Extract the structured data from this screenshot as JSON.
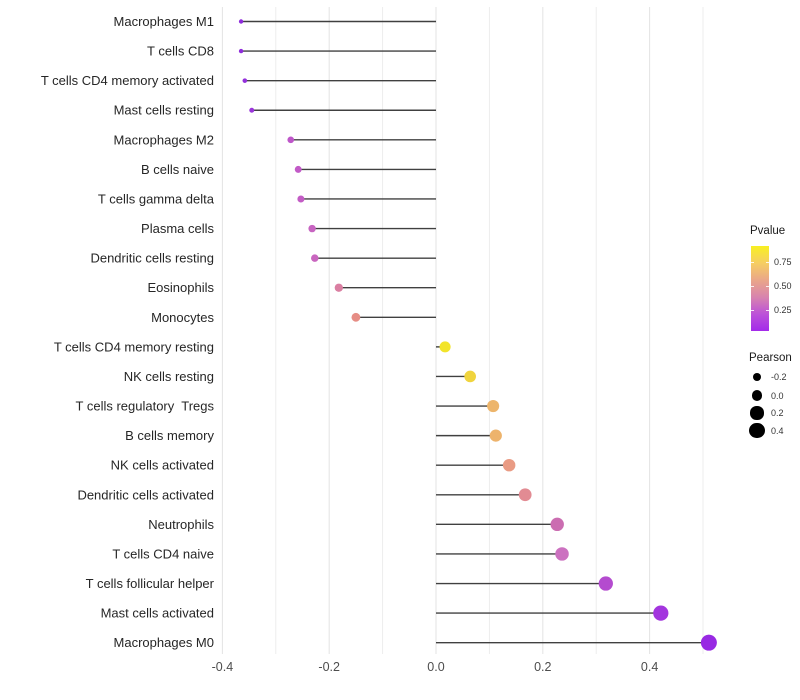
{
  "chart_data": {
    "type": "lollipop",
    "title": "",
    "xlabel": "",
    "ylabel": "",
    "grid": true,
    "x_axis": {
      "tick_labels": [
        "-0.4",
        "-0.2",
        "0.0",
        "0.2",
        "0.4"
      ],
      "tick_values": [
        -0.4,
        -0.2,
        0.0,
        0.2,
        0.4
      ],
      "grid_from": -0.4,
      "grid_to": 0.5,
      "grid_step": 0.1,
      "range": [
        -0.41,
        0.56
      ]
    },
    "rows": [
      {
        "label": "Macrophages M1",
        "pearson": -0.365,
        "color": "#8E2BDB"
      },
      {
        "label": "T cells CD8",
        "pearson": -0.365,
        "color": "#8F2CDB"
      },
      {
        "label": "T cells CD4 memory activated",
        "pearson": -0.358,
        "color": "#9330DB"
      },
      {
        "label": "Mast cells resting",
        "pearson": -0.345,
        "color": "#9A35DA"
      },
      {
        "label": "Macrophages M2",
        "pearson": -0.272,
        "color": "#BE56C9"
      },
      {
        "label": "B cells naive",
        "pearson": -0.258,
        "color": "#C25AC7"
      },
      {
        "label": "T cells gamma delta",
        "pearson": -0.253,
        "color": "#C35CC5"
      },
      {
        "label": "Plasma cells",
        "pearson": -0.232,
        "color": "#C764C1"
      },
      {
        "label": "Dendritic cells resting",
        "pearson": -0.227,
        "color": "#C966BF"
      },
      {
        "label": "Eosinophils",
        "pearson": -0.182,
        "color": "#DA7FA2"
      },
      {
        "label": "Monocytes",
        "pearson": -0.15,
        "color": "#E68D85"
      },
      {
        "label": "T cells CD4 memory resting",
        "pearson": 0.017,
        "color": "#F2E42A"
      },
      {
        "label": "NK cells resting",
        "pearson": 0.064,
        "color": "#F0D43E"
      },
      {
        "label": "T cells regulatory  Tregs",
        "pearson": 0.107,
        "color": "#EDB56B"
      },
      {
        "label": "B cells memory",
        "pearson": 0.112,
        "color": "#EDB36C"
      },
      {
        "label": "NK cells activated",
        "pearson": 0.137,
        "color": "#E99B84"
      },
      {
        "label": "Dendritic cells activated",
        "pearson": 0.167,
        "color": "#E28B93"
      },
      {
        "label": "Neutrophils",
        "pearson": 0.227,
        "color": "#CB6DB1"
      },
      {
        "label": "T cells CD4 naive",
        "pearson": 0.236,
        "color": "#CC71C0"
      },
      {
        "label": "T cells follicular helper",
        "pearson": 0.318,
        "color": "#B44BCF"
      },
      {
        "label": "Mast cells activated",
        "pearson": 0.421,
        "color": "#A335DE"
      },
      {
        "label": "Macrophages M0",
        "pearson": 0.511,
        "color": "#9829E3"
      }
    ],
    "color_legend": {
      "title": "Pvalue",
      "tick_labels": [
        "0.75",
        "0.50",
        "0.25"
      ],
      "gradient_top_to_bottom": [
        "#F8F021",
        "#F6CE62",
        "#EAA689",
        "#D884AE",
        "#BC52D8",
        "#A32BEA"
      ]
    },
    "size_legend": {
      "title": "Pearson",
      "tick_labels": [
        "-0.2",
        "0.0",
        "0.2",
        "0.4"
      ],
      "tick_values": [
        -0.2,
        0.0,
        0.2,
        0.4
      ],
      "dot_color": "#000000"
    },
    "style_colors": {
      "grid_major": "#E3E3E3",
      "grid_minor": "#EDEDED",
      "stem": "#404040",
      "axis_text": "#4D4D4D",
      "category_text": "#262626"
    }
  }
}
